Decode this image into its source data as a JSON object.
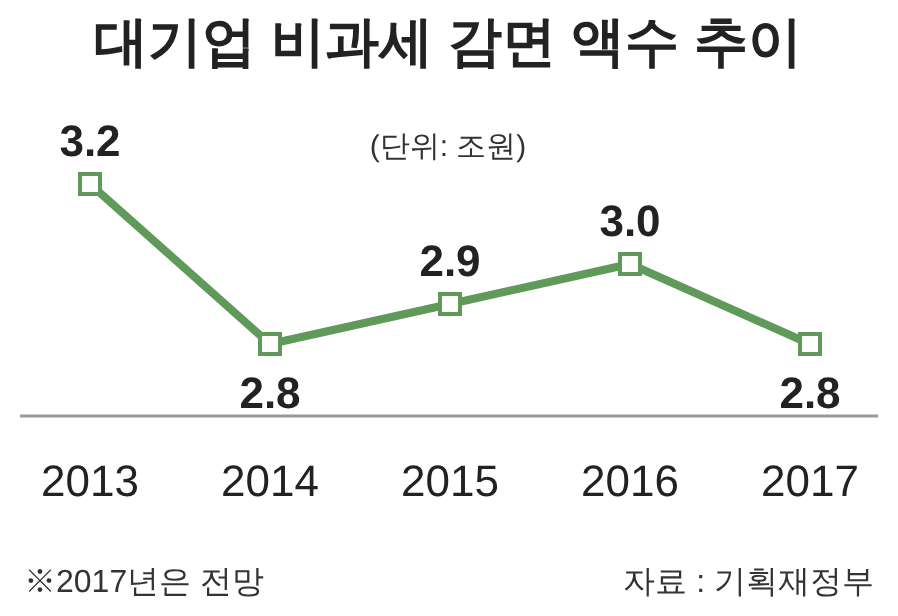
{
  "chart_data": {
    "type": "line",
    "title": "대기업 비과세 감면 액수 추이",
    "subtitle": "(단위: 조원)",
    "categories": [
      "2013",
      "2014",
      "2015",
      "2016",
      "2017"
    ],
    "series": [
      {
        "color": "#5f9a5a",
        "values": [
          3.2,
          2.8,
          2.9,
          3.0,
          2.8
        ],
        "value_labels": [
          "3.2",
          "2.8",
          "2.9",
          "3.0",
          "2.8"
        ]
      }
    ],
    "marker": "square",
    "annotations": [
      "※2017년은 전망",
      "자료 : 기획재정부"
    ]
  }
}
